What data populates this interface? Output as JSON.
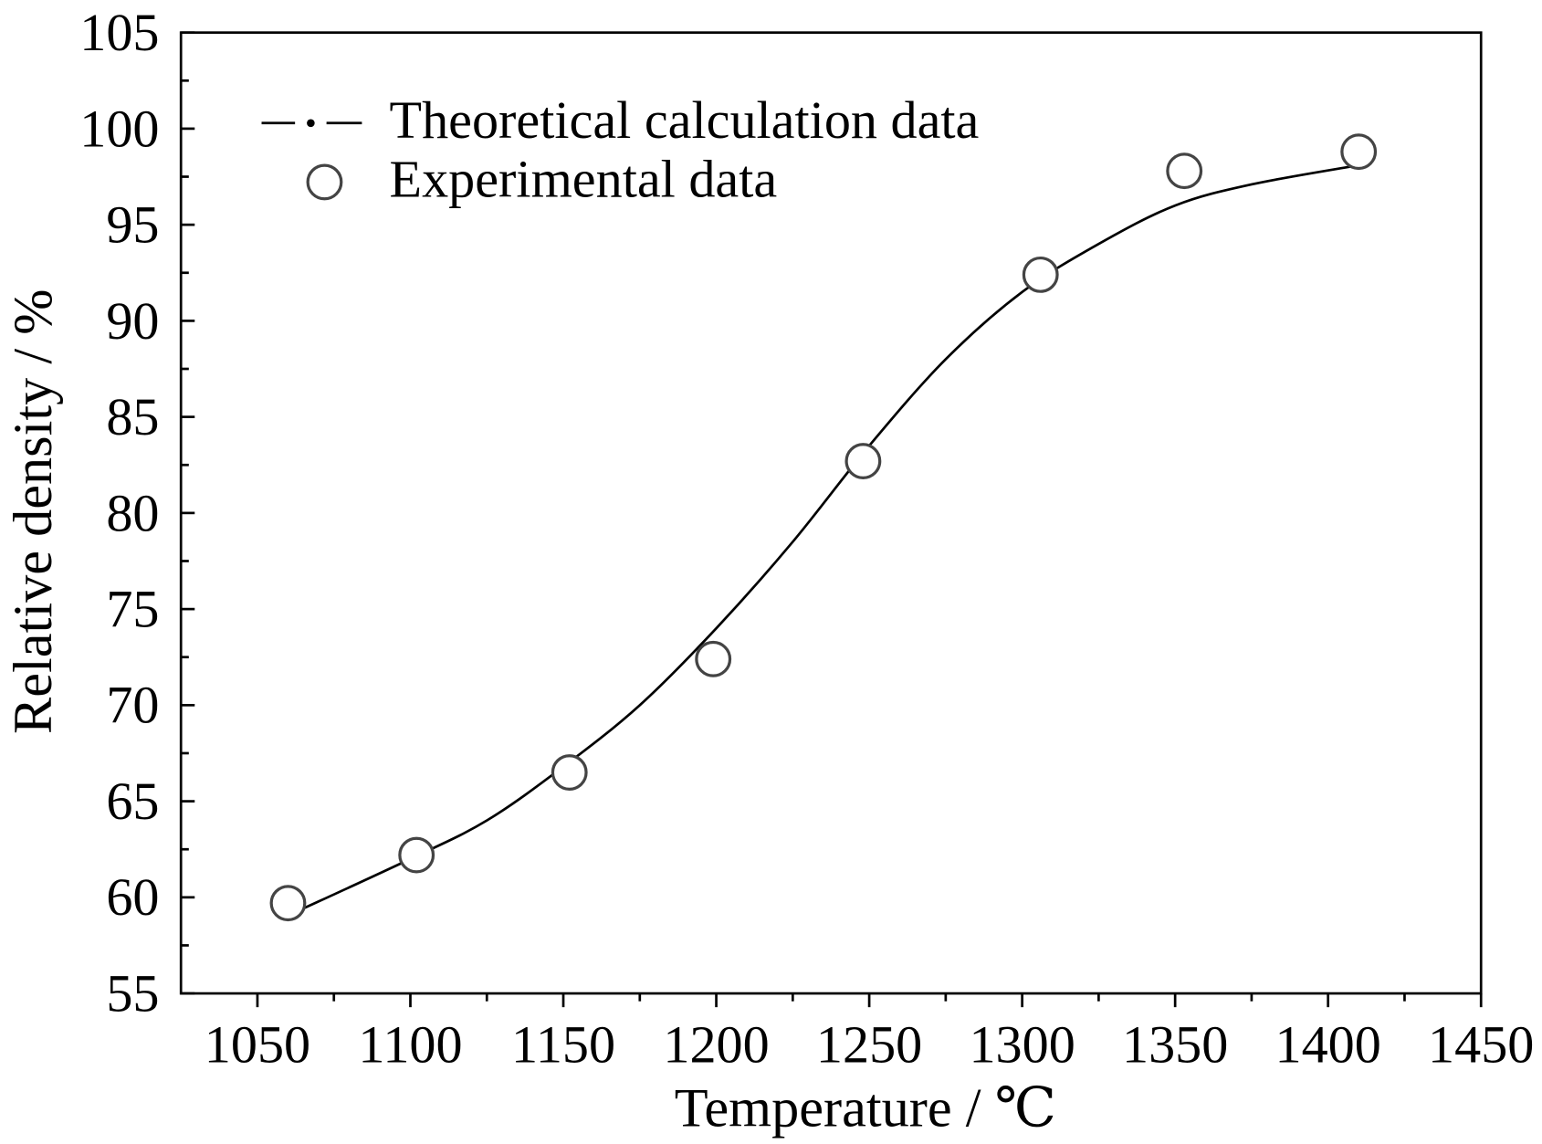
{
  "chart_data": {
    "type": "line",
    "title": "",
    "xlabel": "Temperature / ℃",
    "ylabel": "Relative density / %",
    "xlim": [
      1025,
      1450
    ],
    "ylim": [
      55,
      105
    ],
    "xticks": [
      1050,
      1100,
      1150,
      1200,
      1250,
      1300,
      1350,
      1400,
      1450
    ],
    "yticks": [
      55,
      60,
      65,
      70,
      75,
      80,
      85,
      90,
      95,
      100,
      105
    ],
    "grid": false,
    "legend_position": "top-left",
    "series": [
      {
        "name": "Theoretical calculation data",
        "kind": "line",
        "color": "#000000",
        "x": [
          1062,
          1100,
          1125,
          1150,
          1175,
          1200,
          1225,
          1250,
          1275,
          1300,
          1325,
          1350,
          1375,
          1410
        ],
        "y": [
          59.2,
          62.0,
          64.0,
          66.8,
          70.0,
          74.0,
          78.5,
          83.5,
          88.0,
          91.5,
          94.0,
          96.0,
          97.1,
          98.1
        ]
      },
      {
        "name": "Experimental data",
        "kind": "scatter",
        "marker": "open-circle",
        "color": "#444444",
        "x": [
          1060,
          1102,
          1152,
          1199,
          1248,
          1306,
          1353,
          1410
        ],
        "y": [
          59.7,
          62.2,
          66.5,
          72.4,
          82.7,
          92.4,
          97.8,
          98.8
        ]
      }
    ]
  }
}
